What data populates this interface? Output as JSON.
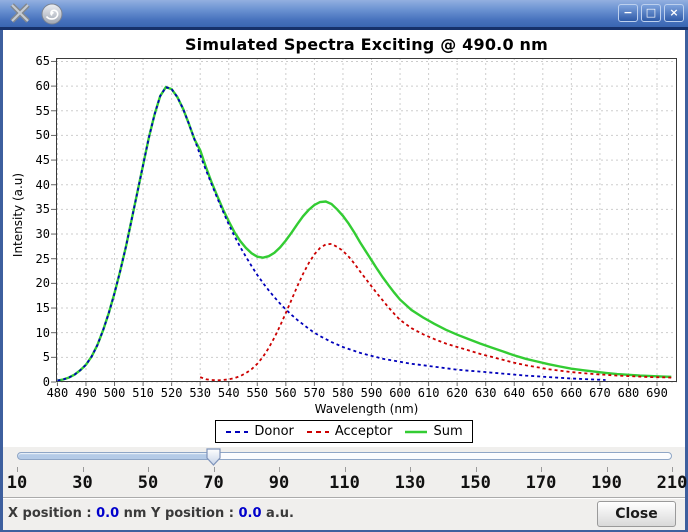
{
  "window": {
    "buttons": [
      {
        "name": "minimize",
        "glyph": "−"
      },
      {
        "name": "maximize",
        "glyph": "□"
      },
      {
        "name": "close",
        "glyph": "×"
      }
    ],
    "icons": [
      "x11-logo-icon",
      "app-swirl-icon"
    ]
  },
  "chart_data": {
    "type": "line",
    "title": "Simulated Spectra Exciting @ 490.0 nm",
    "xlabel": "Wavelength (nm)",
    "ylabel": "Intensity (a.u)",
    "xlim": [
      479.5,
      697
    ],
    "ylim": [
      0,
      65.7
    ],
    "x_ticks": [
      480,
      490,
      500,
      510,
      520,
      530,
      540,
      550,
      560,
      570,
      580,
      590,
      600,
      610,
      620,
      630,
      640,
      650,
      660,
      670,
      680,
      690
    ],
    "y_ticks": [
      0,
      5,
      10,
      15,
      20,
      25,
      30,
      35,
      40,
      45,
      50,
      55,
      60,
      65
    ],
    "grid": true,
    "legend_position": "bottom",
    "series": [
      {
        "name": "Donor",
        "color": "#0000BB",
        "style": "dashed",
        "width": 1.8,
        "points": [
          [
            480,
            0.3
          ],
          [
            482,
            0.5
          ],
          [
            484,
            0.9
          ],
          [
            486,
            1.5
          ],
          [
            488,
            2.4
          ],
          [
            490,
            3.5
          ],
          [
            492,
            5.2
          ],
          [
            494,
            7.5
          ],
          [
            496,
            10.5
          ],
          [
            498,
            14
          ],
          [
            500,
            18
          ],
          [
            502,
            22.5
          ],
          [
            504,
            27.5
          ],
          [
            506,
            33
          ],
          [
            508,
            38.5
          ],
          [
            510,
            44
          ],
          [
            512,
            49.5
          ],
          [
            514,
            54.2
          ],
          [
            516,
            58
          ],
          [
            518,
            59.8
          ],
          [
            520,
            59.4
          ],
          [
            522,
            57.8
          ],
          [
            524,
            55.4
          ],
          [
            526,
            52.4
          ],
          [
            528,
            49.2
          ],
          [
            530,
            46
          ],
          [
            532,
            43
          ],
          [
            534,
            40.1
          ],
          [
            536,
            37.3
          ],
          [
            538,
            34.6
          ],
          [
            540,
            32
          ],
          [
            542,
            29.6
          ],
          [
            544,
            27.4
          ],
          [
            546,
            25.4
          ],
          [
            548,
            23.5
          ],
          [
            550,
            21.7
          ],
          [
            552,
            20.1
          ],
          [
            554,
            18.6
          ],
          [
            556,
            17.2
          ],
          [
            558,
            15.9
          ],
          [
            560,
            14.7
          ],
          [
            562,
            13.6
          ],
          [
            564,
            12.6
          ],
          [
            566,
            11.7
          ],
          [
            568,
            10.8
          ],
          [
            570,
            10
          ],
          [
            572,
            9.3
          ],
          [
            574,
            8.7
          ],
          [
            576,
            8.1
          ],
          [
            578,
            7.6
          ],
          [
            580,
            7.1
          ],
          [
            582,
            6.7
          ],
          [
            584,
            6.3
          ],
          [
            586,
            5.9
          ],
          [
            588,
            5.6
          ],
          [
            590,
            5.3
          ],
          [
            592,
            5
          ],
          [
            594,
            4.7
          ],
          [
            596,
            4.5
          ],
          [
            598,
            4.3
          ],
          [
            600,
            4.1
          ],
          [
            604,
            3.7
          ],
          [
            608,
            3.4
          ],
          [
            612,
            3.1
          ],
          [
            616,
            2.8
          ],
          [
            620,
            2.5
          ],
          [
            624,
            2.3
          ],
          [
            628,
            2.1
          ],
          [
            632,
            1.9
          ],
          [
            636,
            1.7
          ],
          [
            640,
            1.5
          ],
          [
            644,
            1.3
          ],
          [
            648,
            1.15
          ],
          [
            652,
            1
          ],
          [
            656,
            0.85
          ],
          [
            660,
            0.7
          ],
          [
            664,
            0.6
          ],
          [
            668,
            0.5
          ],
          [
            672,
            0.4
          ]
        ]
      },
      {
        "name": "Acceptor",
        "color": "#CC0000",
        "style": "dashed",
        "width": 1.8,
        "points": [
          [
            530,
            1
          ],
          [
            532,
            0.55
          ],
          [
            534,
            0.4
          ],
          [
            536,
            0.35
          ],
          [
            538,
            0.4
          ],
          [
            540,
            0.55
          ],
          [
            542,
            0.8
          ],
          [
            544,
            1.2
          ],
          [
            546,
            1.8
          ],
          [
            548,
            2.6
          ],
          [
            550,
            3.7
          ],
          [
            552,
            5.1
          ],
          [
            554,
            6.9
          ],
          [
            556,
            9
          ],
          [
            558,
            11.4
          ],
          [
            560,
            14
          ],
          [
            562,
            16.7
          ],
          [
            564,
            19.4
          ],
          [
            566,
            21.9
          ],
          [
            568,
            24.1
          ],
          [
            570,
            25.9
          ],
          [
            572,
            27.2
          ],
          [
            574,
            27.9
          ],
          [
            576,
            28
          ],
          [
            578,
            27.4
          ],
          [
            580,
            26.6
          ],
          [
            582,
            25.4
          ],
          [
            584,
            24
          ],
          [
            586,
            22.4
          ],
          [
            588,
            20.9
          ],
          [
            590,
            19.4
          ],
          [
            592,
            17.9
          ],
          [
            594,
            16.5
          ],
          [
            596,
            15.1
          ],
          [
            598,
            13.8
          ],
          [
            600,
            12.6
          ],
          [
            604,
            10.9
          ],
          [
            608,
            9.7
          ],
          [
            612,
            8.7
          ],
          [
            616,
            7.8
          ],
          [
            620,
            7.1
          ],
          [
            624,
            6.4
          ],
          [
            628,
            5.7
          ],
          [
            632,
            5.1
          ],
          [
            636,
            4.5
          ],
          [
            640,
            3.9
          ],
          [
            644,
            3.4
          ],
          [
            648,
            3
          ],
          [
            652,
            2.6
          ],
          [
            656,
            2.3
          ],
          [
            660,
            2
          ],
          [
            664,
            1.8
          ],
          [
            668,
            1.6
          ],
          [
            672,
            1.45
          ],
          [
            676,
            1.3
          ],
          [
            680,
            1.2
          ],
          [
            684,
            1.1
          ],
          [
            688,
            1
          ],
          [
            692,
            0.95
          ],
          [
            695,
            0.9
          ]
        ]
      },
      {
        "name": "Sum",
        "color": "#33CC33",
        "style": "solid",
        "width": 2.4,
        "points": [
          [
            480,
            0.3
          ],
          [
            482,
            0.5
          ],
          [
            484,
            0.9
          ],
          [
            486,
            1.5
          ],
          [
            488,
            2.4
          ],
          [
            490,
            3.5
          ],
          [
            492,
            5.2
          ],
          [
            494,
            7.5
          ],
          [
            496,
            10.5
          ],
          [
            498,
            14
          ],
          [
            500,
            18
          ],
          [
            502,
            22.5
          ],
          [
            504,
            27.5
          ],
          [
            506,
            33
          ],
          [
            508,
            38.5
          ],
          [
            510,
            44
          ],
          [
            512,
            49.5
          ],
          [
            514,
            54.2
          ],
          [
            516,
            58
          ],
          [
            518,
            59.8
          ],
          [
            520,
            59.4
          ],
          [
            522,
            57.8
          ],
          [
            524,
            55.4
          ],
          [
            526,
            52.4
          ],
          [
            528,
            49.2
          ],
          [
            530,
            47
          ],
          [
            532,
            43.6
          ],
          [
            534,
            40.5
          ],
          [
            536,
            37.7
          ],
          [
            538,
            35
          ],
          [
            540,
            32.6
          ],
          [
            542,
            30.4
          ],
          [
            544,
            28.6
          ],
          [
            546,
            27.2
          ],
          [
            548,
            26.1
          ],
          [
            550,
            25.4
          ],
          [
            552,
            25.2
          ],
          [
            554,
            25.5
          ],
          [
            556,
            26.2
          ],
          [
            558,
            27.3
          ],
          [
            560,
            28.7
          ],
          [
            562,
            30.3
          ],
          [
            564,
            32
          ],
          [
            566,
            33.6
          ],
          [
            568,
            34.9
          ],
          [
            570,
            35.9
          ],
          [
            572,
            36.5
          ],
          [
            574,
            36.6
          ],
          [
            576,
            36.1
          ],
          [
            578,
            35
          ],
          [
            580,
            33.7
          ],
          [
            582,
            32.1
          ],
          [
            584,
            30.3
          ],
          [
            586,
            28.3
          ],
          [
            588,
            26.5
          ],
          [
            590,
            24.7
          ],
          [
            592,
            22.9
          ],
          [
            594,
            21.2
          ],
          [
            596,
            19.6
          ],
          [
            598,
            18.1
          ],
          [
            600,
            16.7
          ],
          [
            604,
            14.6
          ],
          [
            608,
            13.1
          ],
          [
            612,
            11.8
          ],
          [
            616,
            10.6
          ],
          [
            620,
            9.6
          ],
          [
            624,
            8.7
          ],
          [
            628,
            7.8
          ],
          [
            632,
            7
          ],
          [
            636,
            6.2
          ],
          [
            640,
            5.4
          ],
          [
            644,
            4.7
          ],
          [
            648,
            4.15
          ],
          [
            652,
            3.6
          ],
          [
            656,
            3.15
          ],
          [
            660,
            2.7
          ],
          [
            664,
            2.4
          ],
          [
            668,
            2.1
          ],
          [
            672,
            1.85
          ],
          [
            676,
            1.6
          ],
          [
            680,
            1.45
          ],
          [
            684,
            1.3
          ],
          [
            688,
            1.2
          ],
          [
            692,
            1.1
          ],
          [
            695,
            1.05
          ]
        ]
      }
    ]
  },
  "slider": {
    "min": 10,
    "max": 210,
    "value": 70,
    "tick_labels": [
      10,
      30,
      50,
      70,
      90,
      110,
      130,
      150,
      170,
      190,
      210
    ]
  },
  "statusbar": {
    "x_label": "X position :",
    "x_value": "0.0",
    "x_unit": "nm",
    "y_label": "Y position :",
    "y_value": "0.0",
    "y_unit": "a.u.",
    "close_label": "Close"
  },
  "colors": {
    "status_value": "#0000CC",
    "grid": "#CDCDCD",
    "plot_border": "#3A3A3A",
    "titlebar_accent": "#4671BC"
  }
}
